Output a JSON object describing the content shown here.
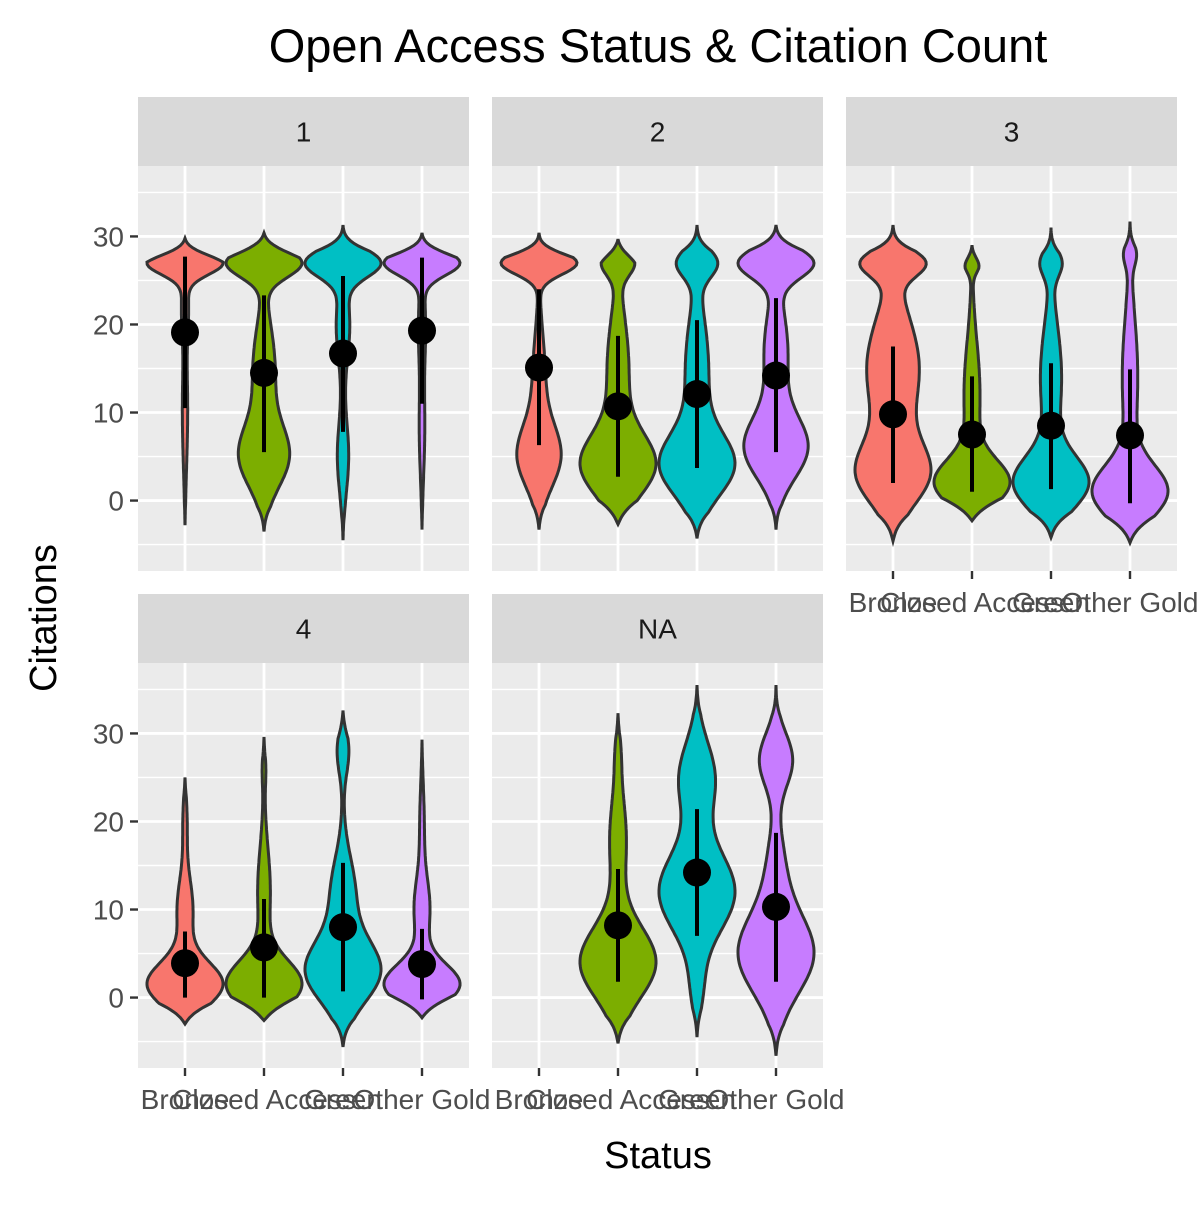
{
  "chart_data": {
    "type": "violin",
    "title": "Open Access Status & Citation Count",
    "xlabel": "Status",
    "ylabel": "Citations",
    "ylim": [
      -8,
      38
    ],
    "y_ticks": [
      0,
      10,
      20,
      30
    ],
    "grid": true,
    "legend": "none",
    "categories": [
      "Bronze",
      "Closed Access",
      "Green",
      "Other Gold"
    ],
    "colors": {
      "Bronze": "#F8766D",
      "Closed Access": "#7CAE00",
      "Green": "#00BFC4",
      "Other Gold": "#C77CFF",
      "panel_bg": "#EBEBEB",
      "strip_bg": "#D9D9D9",
      "grid": "#FFFFFF",
      "outline": "#333333",
      "point": "#000000"
    },
    "panels": [
      {
        "label": "1",
        "series": [
          {
            "name": "Bronze",
            "min": -2.8,
            "max": 29.8,
            "mean": 19.1,
            "lower": 10.5,
            "upper": 27.7,
            "modes": [
              [
                27,
                1.0,
                1.3
              ],
              [
                22,
                0.08,
                3
              ],
              [
                10,
                0.06,
                6
              ]
            ]
          },
          {
            "name": "Closed Access",
            "min": -3.5,
            "max": 30.4,
            "mean": 14.5,
            "lower": 5.5,
            "upper": 23.3,
            "modes": [
              [
                27,
                0.55,
                1.6
              ],
              [
                5,
                0.35,
                3.5
              ],
              [
                15,
                0.15,
                5
              ]
            ]
          },
          {
            "name": "Green",
            "min": -4.5,
            "max": 31.3,
            "mean": 16.7,
            "lower": 7.8,
            "upper": 25.5,
            "modes": [
              [
                27,
                0.7,
                1.6
              ],
              [
                20,
                0.12,
                4
              ],
              [
                5,
                0.1,
                4
              ]
            ]
          },
          {
            "name": "Other Gold",
            "min": -3.3,
            "max": 30.4,
            "mean": 19.3,
            "lower": 11.0,
            "upper": 27.6,
            "modes": [
              [
                27,
                0.95,
                1.4
              ],
              [
                20,
                0.08,
                4
              ],
              [
                8,
                0.06,
                5
              ]
            ]
          }
        ]
      },
      {
        "label": "2",
        "series": [
          {
            "name": "Bronze",
            "min": -3.3,
            "max": 30.4,
            "mean": 15.1,
            "lower": 6.3,
            "upper": 24.0,
            "modes": [
              [
                27,
                1.0,
                1.3
              ],
              [
                5,
                0.55,
                3.5
              ],
              [
                14,
                0.15,
                5
              ]
            ]
          },
          {
            "name": "Closed Access",
            "min": -2.7,
            "max": 29.7,
            "mean": 10.7,
            "lower": 2.7,
            "upper": 18.7,
            "modes": [
              [
                27,
                0.3,
                1.4
              ],
              [
                4,
                0.7,
                3.5
              ],
              [
                15,
                0.2,
                6
              ]
            ]
          },
          {
            "name": "Green",
            "min": -4.3,
            "max": 31.3,
            "mean": 12.1,
            "lower": 3.7,
            "upper": 20.5,
            "modes": [
              [
                27,
                0.35,
                1.6
              ],
              [
                4,
                0.65,
                3.5
              ],
              [
                15,
                0.2,
                6
              ]
            ]
          },
          {
            "name": "Other Gold",
            "min": -3.3,
            "max": 31.3,
            "mean": 14.2,
            "lower": 5.5,
            "upper": 23.0,
            "modes": [
              [
                27,
                0.65,
                1.7
              ],
              [
                6,
                0.55,
                3.5
              ],
              [
                17,
                0.2,
                5
              ]
            ]
          }
        ]
      },
      {
        "label": "3",
        "series": [
          {
            "name": "Bronze",
            "min": -4.6,
            "max": 31.3,
            "mean": 9.8,
            "lower": 2.0,
            "upper": 17.5,
            "modes": [
              [
                27,
                0.35,
                1.5
              ],
              [
                3,
                0.4,
                3.5
              ],
              [
                15,
                0.3,
                6
              ]
            ]
          },
          {
            "name": "Closed Access",
            "min": -2.3,
            "max": 29.0,
            "mean": 7.5,
            "lower": 1.0,
            "upper": 14.1,
            "modes": [
              [
                27,
                0.2,
                1.0
              ],
              [
                2,
                0.95,
                2.6
              ],
              [
                12,
                0.2,
                6
              ]
            ]
          },
          {
            "name": "Green",
            "min": -4.2,
            "max": 31.0,
            "mean": 8.5,
            "lower": 1.3,
            "upper": 15.6,
            "modes": [
              [
                27,
                0.25,
                1.5
              ],
              [
                2,
                0.9,
                3.0
              ],
              [
                14,
                0.25,
                6
              ]
            ]
          },
          {
            "name": "Other Gold",
            "min": -4.8,
            "max": 31.7,
            "mean": 7.4,
            "lower": -0.3,
            "upper": 14.9,
            "modes": [
              [
                28,
                0.15,
                1.3
              ],
              [
                1,
                1.0,
                3.0
              ],
              [
                14,
                0.2,
                7
              ]
            ]
          }
        ]
      },
      {
        "label": "4",
        "series": [
          {
            "name": "Bronze",
            "min": -3.0,
            "max": 25.0,
            "mean": 3.9,
            "lower": 0.0,
            "upper": 7.5,
            "modes": [
              [
                1.5,
                1.0,
                2.5
              ],
              [
                10,
                0.2,
                3.5
              ],
              [
                20,
                0.05,
                3
              ]
            ]
          },
          {
            "name": "Closed Access",
            "min": -2.6,
            "max": 29.6,
            "mean": 5.7,
            "lower": 0.0,
            "upper": 11.2,
            "modes": [
              [
                1.5,
                0.95,
                2.7
              ],
              [
                12,
                0.15,
                5
              ],
              [
                26,
                0.04,
                2
              ]
            ]
          },
          {
            "name": "Green",
            "min": -5.6,
            "max": 32.6,
            "mean": 8.0,
            "lower": 0.7,
            "upper": 15.3,
            "modes": [
              [
                3,
                0.65,
                3.5
              ],
              [
                12,
                0.2,
                4
              ],
              [
                28,
                0.1,
                2.5
              ]
            ]
          },
          {
            "name": "Other Gold",
            "min": -2.3,
            "max": 29.3,
            "mean": 3.8,
            "lower": -0.2,
            "upper": 7.8,
            "modes": [
              [
                1.5,
                1.0,
                2.3
              ],
              [
                10,
                0.2,
                3.5
              ],
              [
                20,
                0.05,
                4
              ]
            ]
          }
        ]
      },
      {
        "label": "NA",
        "series": [
          {
            "name": "Bronze",
            "min": null,
            "max": null,
            "mean": null,
            "lower": null,
            "upper": null,
            "modes": []
          },
          {
            "name": "Closed Access",
            "min": -5.2,
            "max": 32.3,
            "mean": 8.2,
            "lower": 1.8,
            "upper": 14.6,
            "modes": [
              [
                4,
                0.95,
                4.0
              ],
              [
                18,
                0.2,
                5
              ],
              [
                28,
                0.05,
                2.5
              ]
            ]
          },
          {
            "name": "Green",
            "min": -4.5,
            "max": 35.5,
            "mean": 14.2,
            "lower": 7.0,
            "upper": 21.4,
            "modes": [
              [
                12,
                0.75,
                4.5
              ],
              [
                25,
                0.35,
                4
              ],
              [
                1,
                0.1,
                3
              ]
            ]
          },
          {
            "name": "Other Gold",
            "min": -6.6,
            "max": 35.5,
            "mean": 10.3,
            "lower": 1.8,
            "upper": 18.7,
            "modes": [
              [
                5,
                0.8,
                4.5
              ],
              [
                27,
                0.35,
                3
              ],
              [
                15,
                0.15,
                4
              ]
            ]
          }
        ]
      }
    ]
  }
}
